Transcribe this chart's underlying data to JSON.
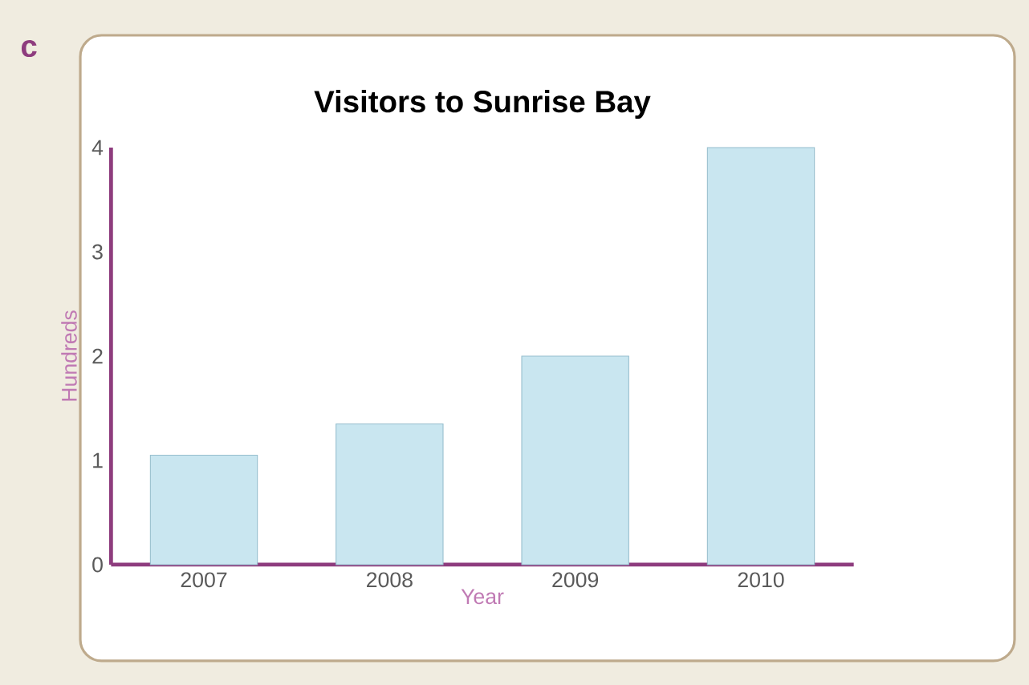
{
  "chart_data": {
    "type": "bar",
    "title": "Visitors to Sunrise Bay",
    "xlabel": "Year",
    "ylabel": "Hundreds",
    "categories": [
      "2007",
      "2008",
      "2009",
      "2010"
    ],
    "values": [
      1.05,
      1.35,
      2,
      4
    ],
    "color": "#c9e6f0",
    "ylim": [
      0,
      4
    ],
    "yticks": [
      0,
      1,
      2,
      3,
      4
    ],
    "annotations": [
      "c"
    ]
  }
}
